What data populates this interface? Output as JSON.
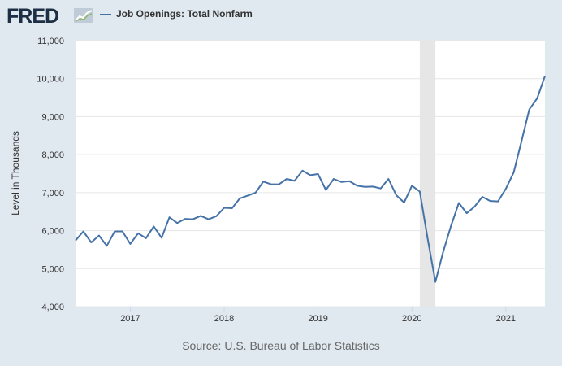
{
  "header": {
    "logo_text": "FRED",
    "logo_icon": "line-chart-icon",
    "legend_label": "Job Openings: Total Nonfarm"
  },
  "source": "Source: U.S. Bureau of Labor Statistics",
  "chart_data": {
    "type": "line",
    "title": "",
    "xlabel": "",
    "ylabel": "Level in Thousands",
    "ylim": [
      4000,
      11000
    ],
    "yticks": [
      4000,
      5000,
      6000,
      7000,
      8000,
      9000,
      10000,
      11000
    ],
    "ytick_labels": [
      "4,000",
      "5,000",
      "6,000",
      "7,000",
      "8,000",
      "9,000",
      "10,000",
      "11,000"
    ],
    "xlim": [
      "2016-06",
      "2021-06"
    ],
    "xticks": [
      "2017-01",
      "2018-01",
      "2019-01",
      "2020-01",
      "2021-01"
    ],
    "xtick_labels": [
      "2017",
      "2018",
      "2019",
      "2020",
      "2021"
    ],
    "recession_shading": {
      "start": "2020-02",
      "end": "2020-04"
    },
    "grid": "horizontal",
    "line_color": "#4572a7",
    "shading_color": "#e6e6e6",
    "series": [
      {
        "name": "Job Openings: Total Nonfarm",
        "x": [
          "2016-06",
          "2016-07",
          "2016-08",
          "2016-09",
          "2016-10",
          "2016-11",
          "2016-12",
          "2017-01",
          "2017-02",
          "2017-03",
          "2017-04",
          "2017-05",
          "2017-06",
          "2017-07",
          "2017-08",
          "2017-09",
          "2017-10",
          "2017-11",
          "2017-12",
          "2018-01",
          "2018-02",
          "2018-03",
          "2018-04",
          "2018-05",
          "2018-06",
          "2018-07",
          "2018-08",
          "2018-09",
          "2018-10",
          "2018-11",
          "2018-12",
          "2019-01",
          "2019-02",
          "2019-03",
          "2019-04",
          "2019-05",
          "2019-06",
          "2019-07",
          "2019-08",
          "2019-09",
          "2019-10",
          "2019-11",
          "2019-12",
          "2020-01",
          "2020-02",
          "2020-03",
          "2020-04",
          "2020-05",
          "2020-06",
          "2020-07",
          "2020-08",
          "2020-09",
          "2020-10",
          "2020-11",
          "2020-12",
          "2021-01",
          "2021-02",
          "2021-03",
          "2021-04",
          "2021-05",
          "2021-06"
        ],
        "values": [
          5740,
          5980,
          5690,
          5870,
          5600,
          5980,
          5980,
          5650,
          5930,
          5800,
          6110,
          5810,
          6350,
          6200,
          6310,
          6300,
          6390,
          6300,
          6380,
          6600,
          6590,
          6850,
          6920,
          7000,
          7290,
          7220,
          7220,
          7360,
          7310,
          7580,
          7460,
          7490,
          7070,
          7360,
          7280,
          7300,
          7180,
          7150,
          7160,
          7110,
          7360,
          6930,
          6740,
          7180,
          7030,
          5800,
          4650,
          5450,
          6130,
          6730,
          6460,
          6630,
          6890,
          6780,
          6770,
          7100,
          7530,
          8350,
          9190,
          9480,
          10070
        ]
      }
    ]
  }
}
